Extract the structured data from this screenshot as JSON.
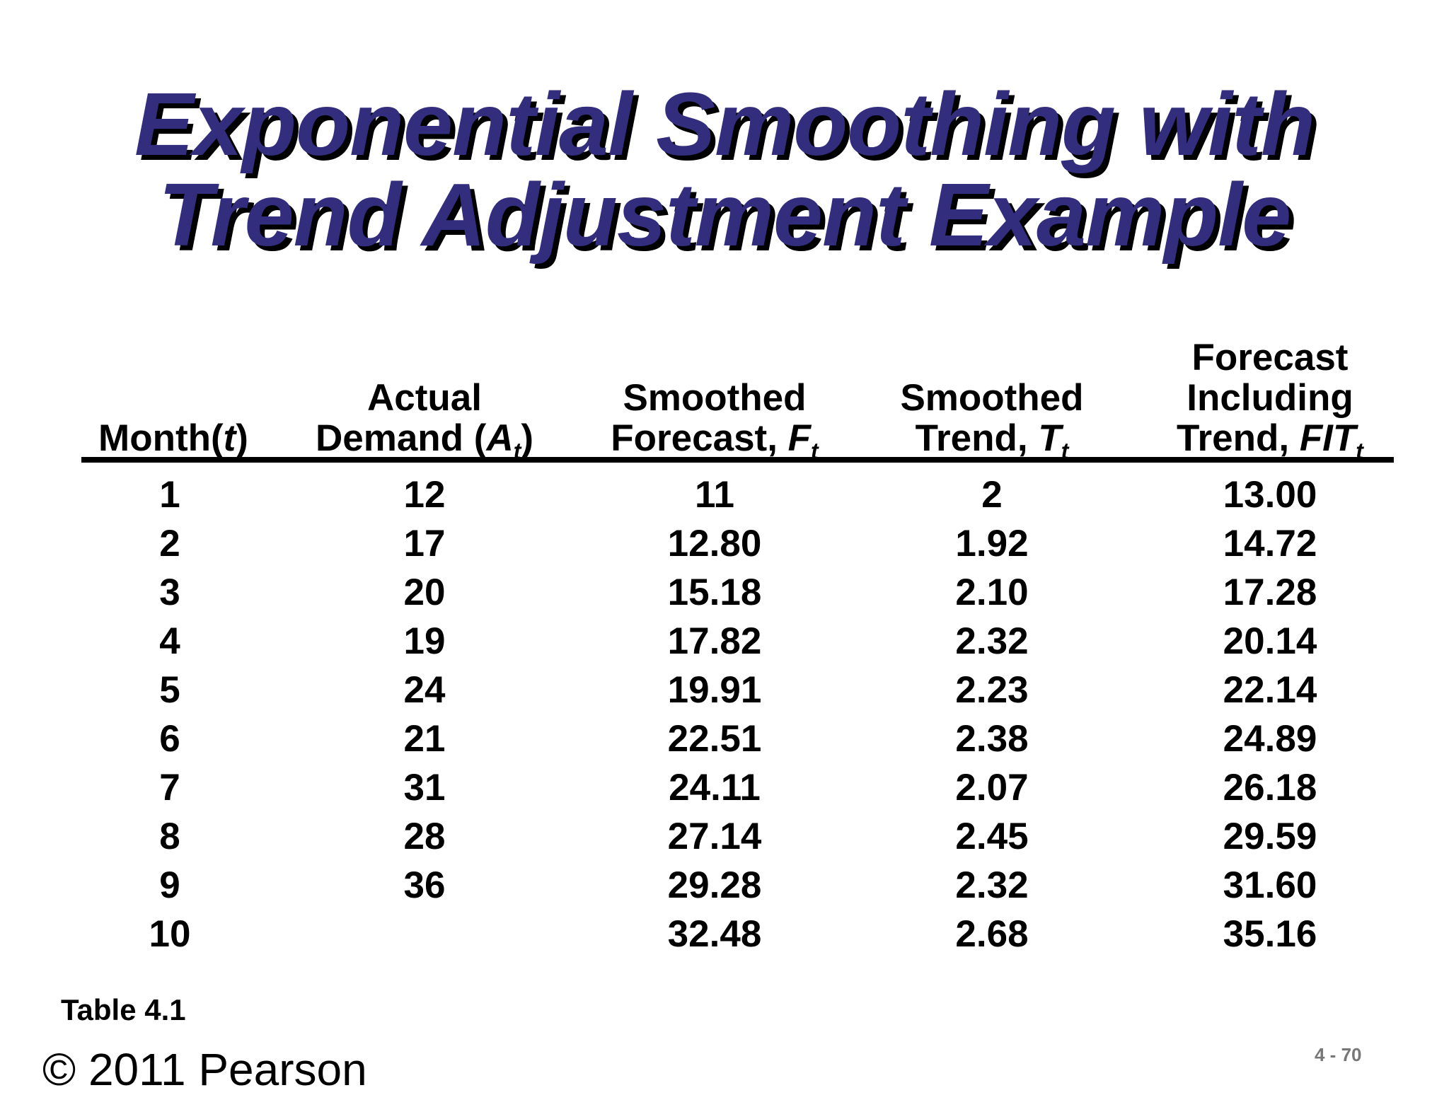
{
  "slide": {
    "title_line1": "Exponential Smoothing with",
    "title_line2": "Trend Adjustment Example",
    "table_label": "Table 4.1",
    "copyright": "© 2011 Pearson",
    "page_number": "4 - 70"
  },
  "table": {
    "headers": {
      "month": {
        "line1": "Month(",
        "var": "t",
        "close": ")"
      },
      "actual": {
        "line1": "Actual",
        "line2": "Demand (",
        "var": "A",
        "sub": "t",
        "close": ")"
      },
      "smoothed_forecast": {
        "line1": "Smoothed",
        "line2": "Forecast, ",
        "var": "F",
        "sub": "t"
      },
      "smoothed_trend": {
        "line1": "Smoothed",
        "line2": "Trend, ",
        "var": "T",
        "sub": "t"
      },
      "fit": {
        "line1": "Forecast",
        "line2": "Including",
        "line3": "Trend, ",
        "var": "FIT",
        "sub": "t"
      }
    },
    "month": [
      "1",
      "2",
      "3",
      "4",
      "5",
      "6",
      "7",
      "8",
      "9",
      "10"
    ],
    "actual": [
      "12",
      "17",
      "20",
      "19",
      "24",
      "21",
      "31",
      "28",
      "36",
      ""
    ],
    "smoothed_forecast": [
      "11",
      "12.80",
      "15.18",
      "17.82",
      "19.91",
      "22.51",
      "24.11",
      "27.14",
      "29.28",
      "32.48"
    ],
    "smoothed_trend": [
      "2",
      "1.92",
      "2.10",
      "2.32",
      "2.23",
      "2.38",
      "2.07",
      "2.45",
      "2.32",
      "2.68"
    ],
    "fit": [
      "13.00",
      "14.72",
      "17.28",
      "20.14",
      "22.14",
      "24.89",
      "26.18",
      "29.59",
      "31.60",
      "35.16"
    ]
  }
}
